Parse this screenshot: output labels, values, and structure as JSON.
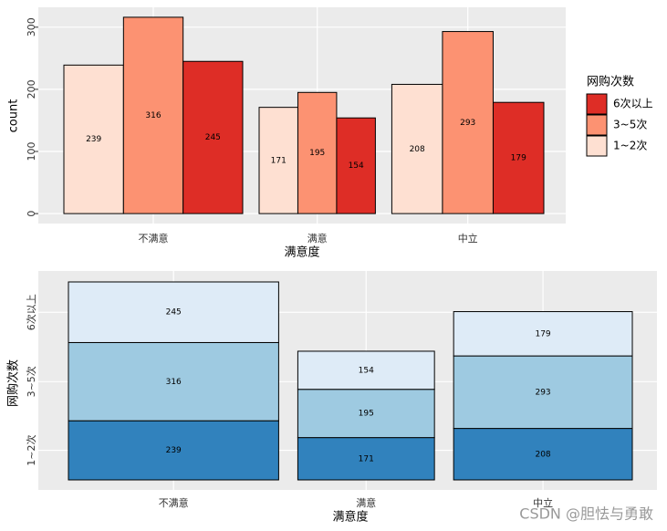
{
  "chart_data": [
    {
      "type": "dodge",
      "x_label": "满意度",
      "y_label": "count",
      "categories": [
        "不满意",
        "满意",
        "中立"
      ],
      "series": [
        {
          "name": "1~2次",
          "color": "#fee0d2",
          "values": [
            239,
            171,
            208
          ]
        },
        {
          "name": "3~5次",
          "color": "#fc9272",
          "values": [
            316,
            195,
            293
          ]
        },
        {
          "name": "6次以上",
          "color": "#de2d26",
          "values": [
            245,
            154,
            179
          ]
        }
      ],
      "ylim": [
        -16,
        332
      ],
      "yticks": [
        0,
        100,
        200,
        300
      ],
      "legend_title": "网购次数",
      "legend": "right",
      "grid": true
    },
    {
      "type": "mosaic",
      "x_label": "满意度",
      "y_label": "网购次数",
      "categories": [
        "不满意",
        "满意",
        "中立"
      ],
      "series": [
        {
          "name": "1~2次",
          "color": "#3182bd",
          "values": [
            239,
            171,
            208
          ]
        },
        {
          "name": "3~5次",
          "color": "#9ecae1",
          "values": [
            316,
            195,
            293
          ]
        },
        {
          "name": "6次以上",
          "color": "#deebf7",
          "values": [
            245,
            154,
            179
          ]
        }
      ],
      "grid": true
    }
  ],
  "watermark": "CSDN @胆怯与勇敢"
}
